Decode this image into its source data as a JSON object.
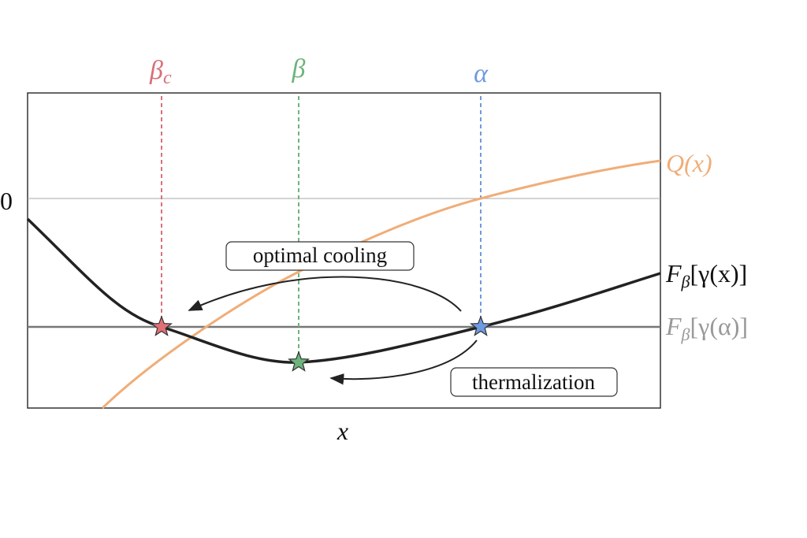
{
  "markers": [
    {
      "label": "β",
      "subscript": "c"
    },
    {
      "label": "β"
    },
    {
      "label": "α"
    }
  ],
  "zero_label": "0",
  "x_label": "x",
  "curves": {
    "q": "Q(x)",
    "free_energy": {
      "main": "F",
      "subscript": "β",
      "argument": "[γ(x)]"
    },
    "reference": {
      "main": "F",
      "subscript": "β",
      "argument": "[γ(α)]"
    }
  },
  "annotations": {
    "optimal_cooling": "optimal cooling",
    "thermalization": "thermalization"
  }
}
